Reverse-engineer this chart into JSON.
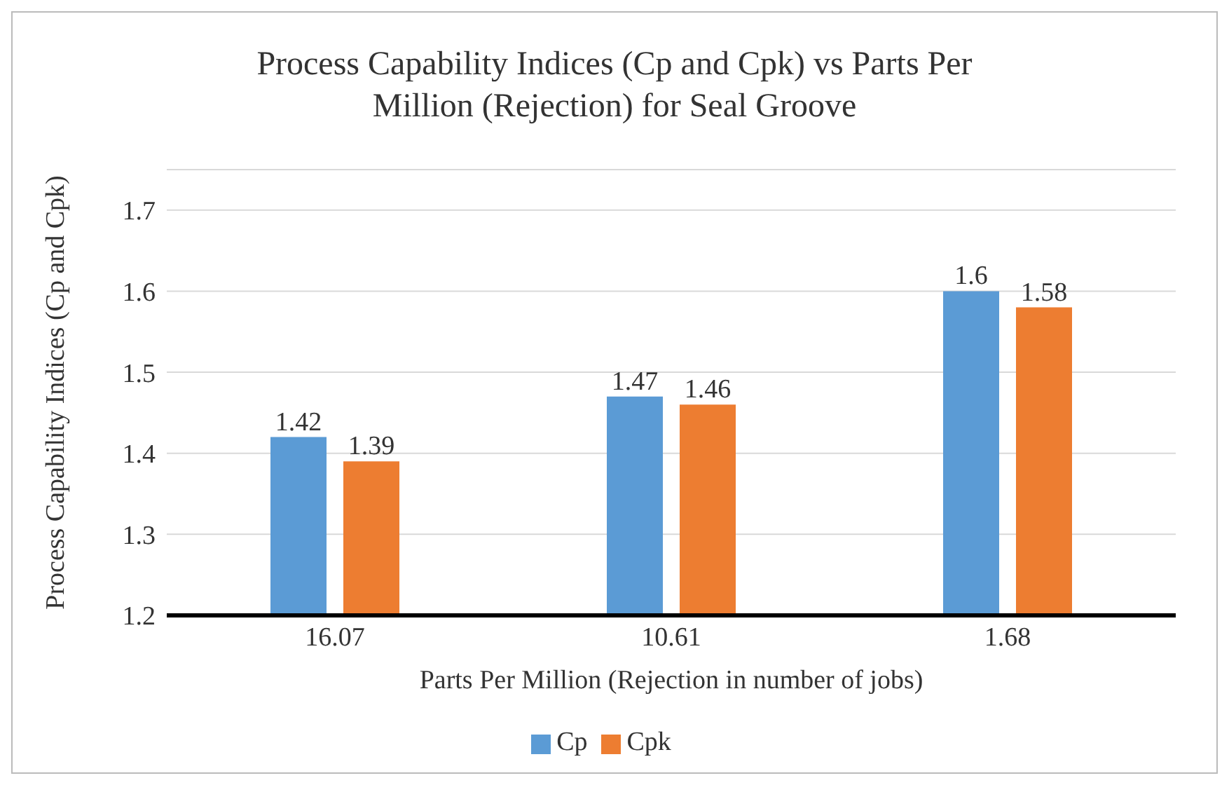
{
  "chart_data": {
    "type": "bar",
    "title": "Process Capability Indices (Cp and Cpk) vs Parts Per Million (Rejection) for Seal Groove",
    "xlabel": "Parts Per Million (Rejection in number of jobs)",
    "ylabel": "Process Capability Indices (Cp and Cpk)",
    "categories": [
      "16.07",
      "10.61",
      "1.68"
    ],
    "series": [
      {
        "name": "Cp",
        "color": "#5b9bd5",
        "values": [
          1.42,
          1.47,
          1.6
        ]
      },
      {
        "name": "Cpk",
        "color": "#ed7d31",
        "values": [
          1.39,
          1.46,
          1.58
        ]
      }
    ],
    "ylim": [
      1.2,
      1.75
    ],
    "yticks": [
      1.2,
      1.3,
      1.4,
      1.5,
      1.6,
      1.7
    ],
    "grid": "y",
    "legend": "bottom",
    "data_labels": true
  }
}
